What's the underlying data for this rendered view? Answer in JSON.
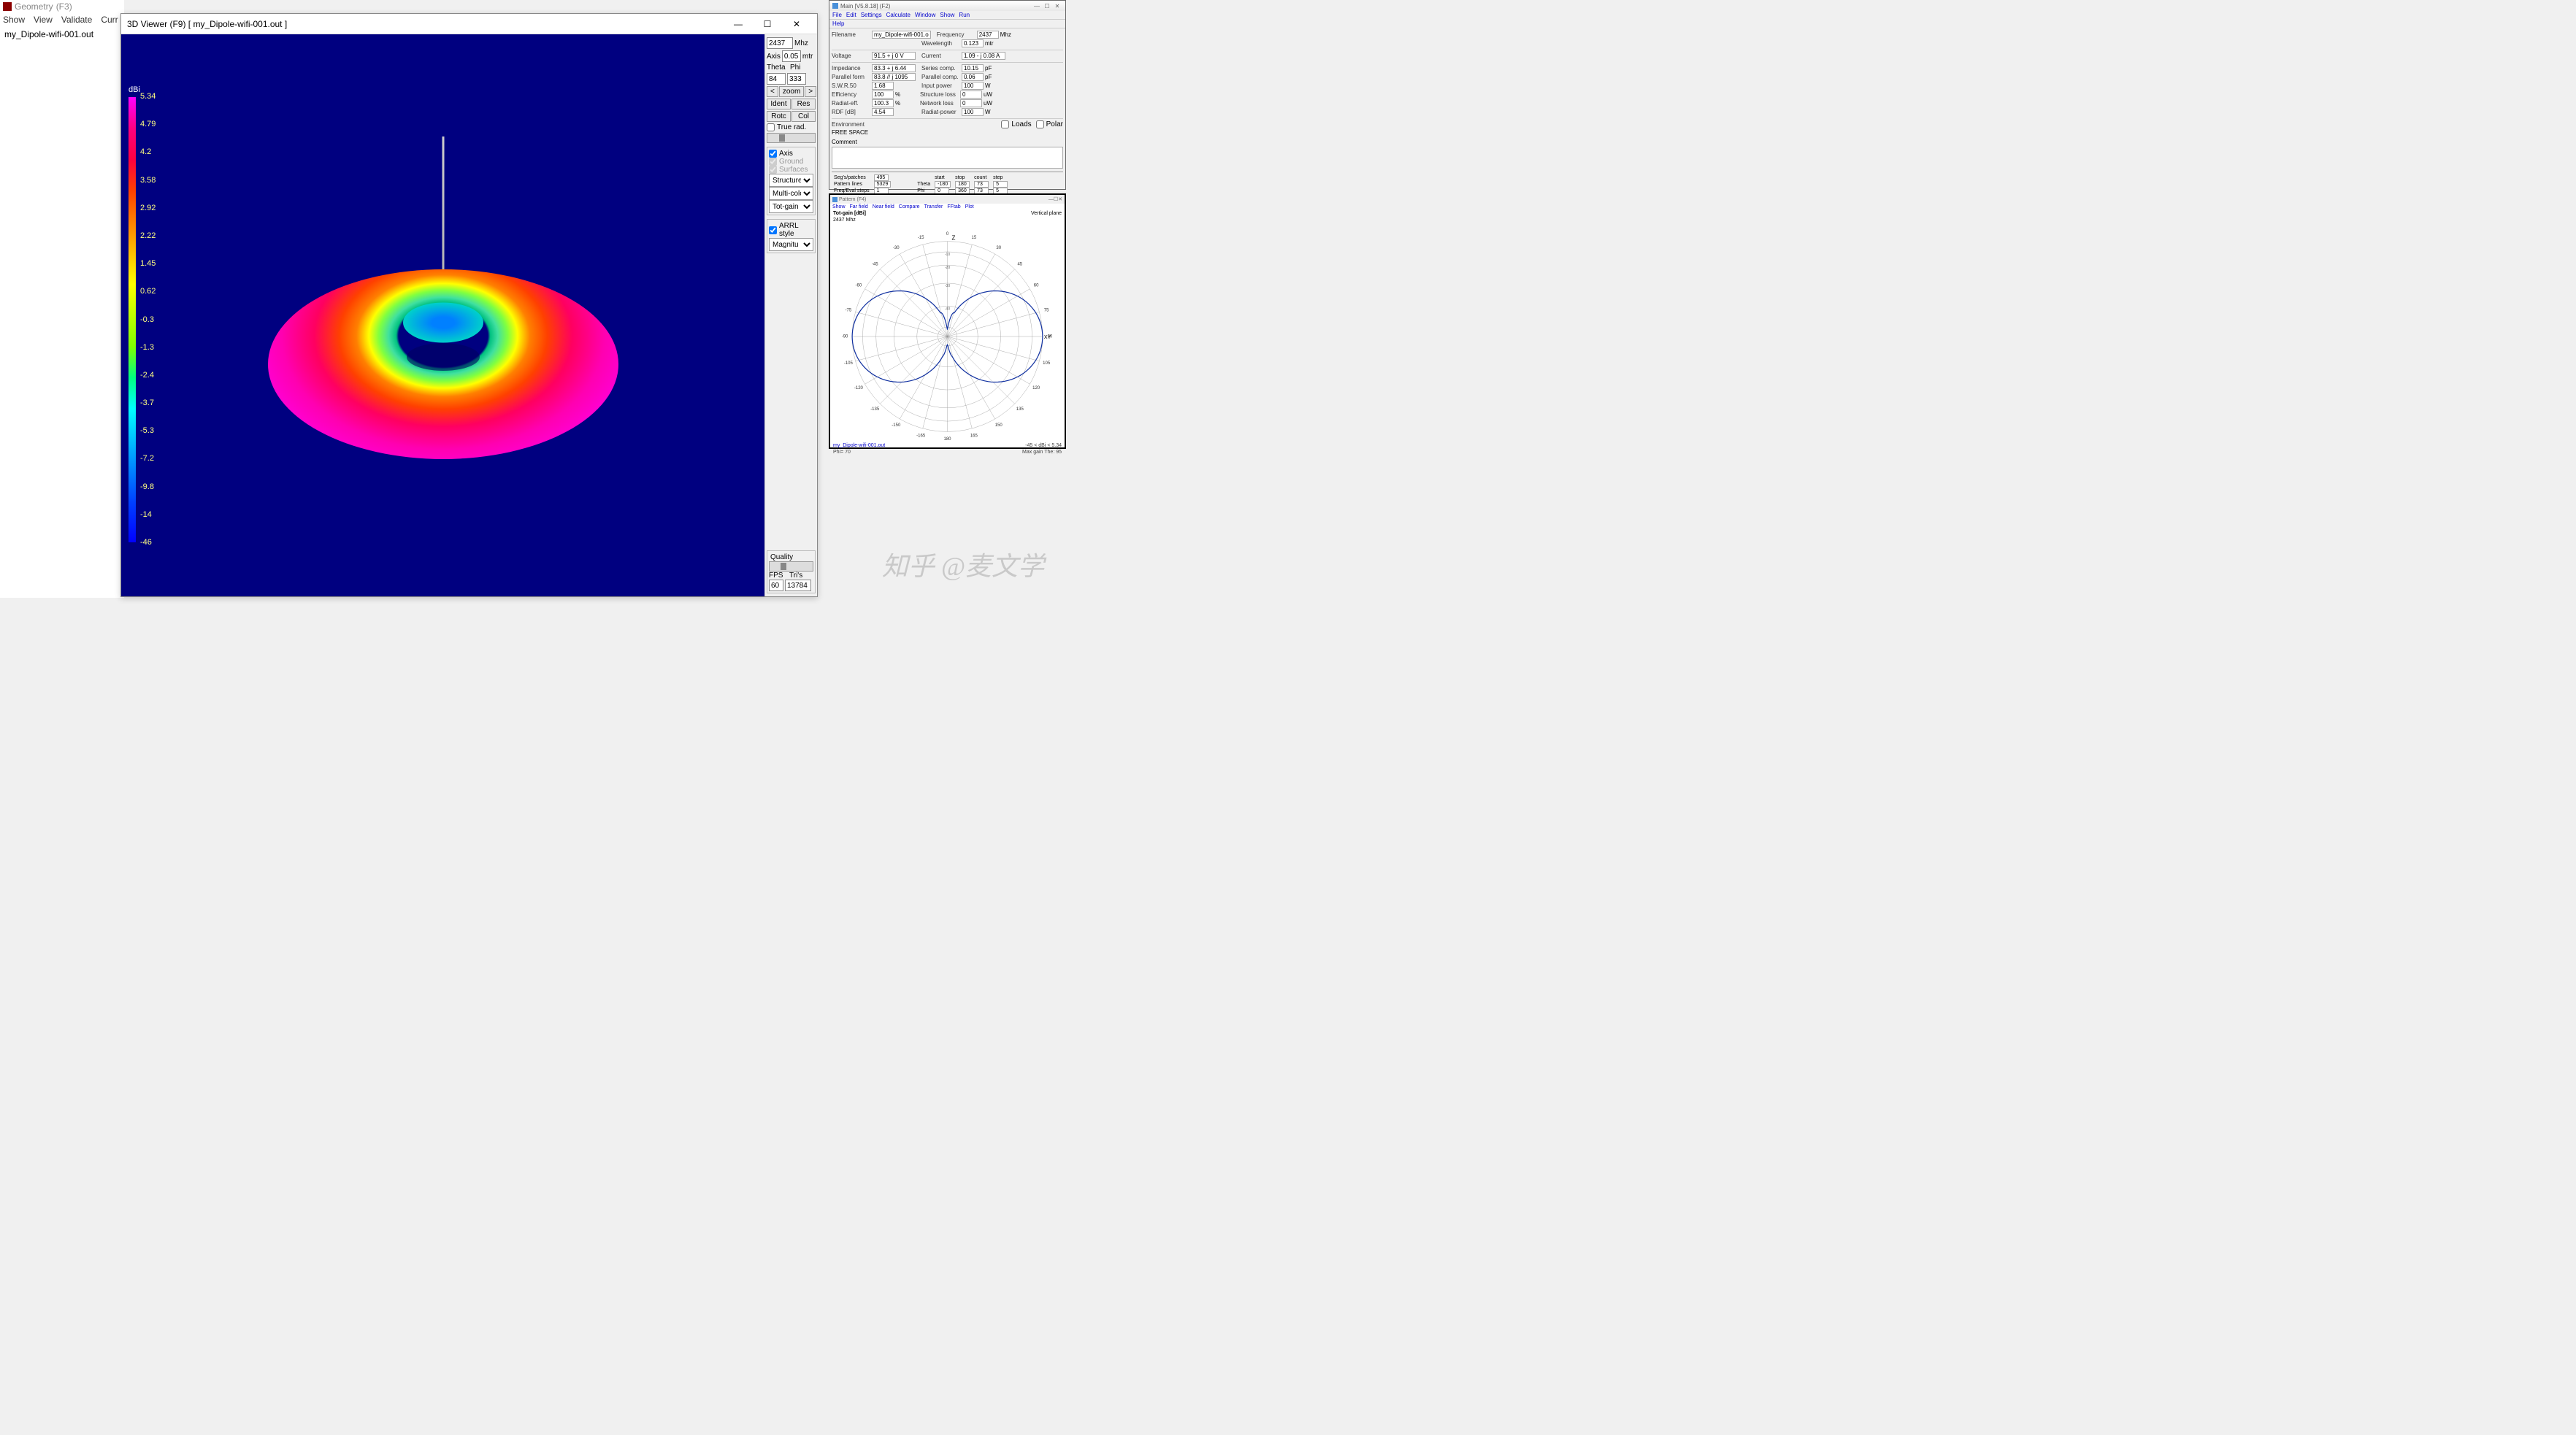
{
  "geometry": {
    "title_prefix": "Geometry",
    "title_suffix": "(F3)",
    "menu": [
      "Show",
      "View",
      "Validate",
      "Curr"
    ],
    "filename": "my_Dipole-wifi-001.out"
  },
  "viewer": {
    "title": "3D Viewer (F9)     [  my_Dipole-wifi-001.out  ]",
    "freq_value": "2437",
    "freq_unit": "Mhz",
    "axis_label": "Axis",
    "axis_value": "0.05",
    "axis_unit": "mtr",
    "theta_label": "Theta",
    "phi_label": "Phi",
    "theta_value": "84",
    "phi_value": "333",
    "zoom_label": "zoom",
    "btn_ident": "Ident",
    "btn_res": "Res",
    "btn_rotc": "Rotc",
    "btn_col": "Col",
    "chk_truerad": "True rad.",
    "chk_axis": "Axis",
    "chk_ground": "Ground",
    "chk_surfaces": "Surfaces",
    "sel_structure": "Structure",
    "sel_multicolor": "Multi-colo",
    "sel_totgain": "Tot-gain",
    "chk_arrl": "ARRL style",
    "sel_magnitude": "Magnitu",
    "quality_label": "Quality",
    "fps_label": "FPS",
    "tris_label": "Tri's",
    "fps_value": "60",
    "tris_value": "13784",
    "scale_unit": "dBi",
    "scale_values": [
      "5.34",
      "4.79",
      "4.2",
      "3.58",
      "2.92",
      "2.22",
      "1.45",
      "0.62",
      "-0.3",
      "-1.3",
      "-2.4",
      "-3.7",
      "-5.3",
      "-7.2",
      "-9.8",
      "-14",
      "-46"
    ],
    "canvas_bg": "#000080",
    "torus_colors": {
      "max": "#ff00ff",
      "high": "#ff0040",
      "mid_high": "#ff8000",
      "mid": "#ffff00",
      "mid_low": "#00ff80",
      "low": "#00c0ff",
      "min": "#0000ff"
    }
  },
  "main": {
    "title": "Main  [V5.8.18]  (F2)",
    "menu": [
      "File",
      "Edit",
      "Settings",
      "Calculate",
      "Window",
      "Show",
      "Run",
      "Help"
    ],
    "filename_label": "Filename",
    "filename_value": "my_Dipole-wifi-001.o",
    "frequency_label": "Frequency",
    "frequency_value": "2437",
    "frequency_unit": "Mhz",
    "wavelength_label": "Wavelength",
    "wavelength_value": "0.123",
    "wavelength_unit": "mtr",
    "voltage_label": "Voltage",
    "voltage_value": "91.5 + j 0 V",
    "current_label": "Current",
    "current_value": "1.09 - j 0.08 A",
    "impedance_label": "Impedance",
    "impedance_value": "83.3 + j 6.44",
    "series_label": "Series comp.",
    "series_value": "10.15",
    "series_unit": "pF",
    "parallel_label": "Parallel form",
    "parallel_value": "83.8 // j 1095",
    "parallel_comp_label": "Parallel comp.",
    "parallel_comp_value": "0.06",
    "parallel_comp_unit": "pF",
    "swr_label": "S.W.R.50",
    "swr_value": "1.68",
    "input_power_label": "Input power",
    "input_power_value": "100",
    "input_power_unit": "W",
    "efficiency_label": "Efficiency",
    "efficiency_value": "100",
    "efficiency_unit": "%",
    "structure_loss_label": "Structure loss",
    "structure_loss_value": "0",
    "structure_loss_unit": "uW",
    "radiat_eff_label": "Radiat-eff.",
    "radiat_eff_value": "100.3",
    "radiat_eff_unit": "%",
    "network_loss_label": "Network loss",
    "network_loss_value": "0",
    "network_loss_unit": "uW",
    "rdf_label": "RDF [dB]",
    "rdf_value": "4.54",
    "radiat_power_label": "Radiat-power",
    "radiat_power_value": "100",
    "radiat_power_unit": "W",
    "environment_label": "Environment",
    "environment_value": "FREE SPACE",
    "loads_label": "Loads",
    "polar_label": "Polar",
    "comment_label": "Comment",
    "segs_label": "Seg's/patches",
    "segs_value": "495",
    "pattern_label": "Pattern lines",
    "pattern_value": "5329",
    "freqeval_label": "Freq/Eval steps",
    "freqeval_value": "1",
    "table_headers": [
      "start",
      "stop",
      "count",
      "step"
    ],
    "theta_row": [
      "Theta",
      "-180",
      "180",
      "73",
      "5"
    ],
    "phi_row": [
      "Phi",
      "0",
      "360",
      "73",
      "5"
    ]
  },
  "pattern": {
    "title": "Pattern   (F4)",
    "menu": [
      "Show",
      "Far field",
      "Near field",
      "Compare",
      "Transfer",
      "FFtab",
      "Plot"
    ],
    "totgain_label": "Tot-gain [dBi]",
    "vertplane_label": "Vertical plane",
    "freq_label": "2437 Mhz",
    "angle_labels": [
      "0",
      "15",
      "30",
      "45",
      "60",
      "75",
      "90",
      "105",
      "120",
      "135",
      "150",
      "165",
      "180",
      "-165",
      "-150",
      "-135",
      "-120",
      "-105",
      "-90",
      "-75",
      "-60",
      "-45",
      "-30",
      "-15"
    ],
    "ring_labels": [
      "-10",
      "-20",
      "-30",
      "-40"
    ],
    "axis_z": "Z",
    "axis_xy": "XY",
    "footer_file": "my_Dipole-wifi-001.out",
    "footer_phi": "Phi= 70",
    "footer_gain": "-45  < dBi <  5.34",
    "footer_max": "Max gain The:  95",
    "line_color": "#1030a0",
    "grid_color": "#999999",
    "bg_color": "#ffffff",
    "pattern_points_right": [
      [
        0.05,
        0.08
      ],
      [
        0.12,
        0.2
      ],
      [
        0.08,
        0.18
      ],
      [
        0.15,
        0.3
      ],
      [
        0.35,
        0.2
      ],
      [
        0.6,
        0.15
      ],
      [
        0.82,
        0.12
      ],
      [
        0.95,
        0.08
      ],
      [
        0.98,
        0.0
      ],
      [
        0.95,
        -0.08
      ],
      [
        0.82,
        -0.14
      ],
      [
        0.6,
        -0.18
      ],
      [
        0.35,
        -0.22
      ],
      [
        0.15,
        -0.28
      ],
      [
        0.08,
        -0.16
      ],
      [
        0.12,
        -0.18
      ],
      [
        0.05,
        -0.06
      ]
    ]
  },
  "watermark": "知乎 @麦文学"
}
